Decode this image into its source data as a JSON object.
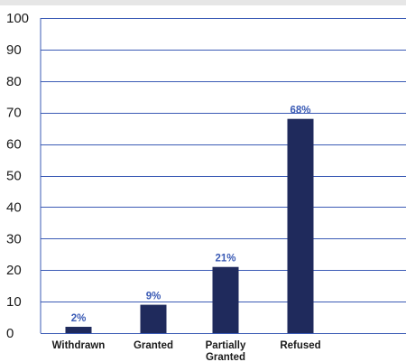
{
  "chart_data": {
    "type": "bar",
    "categories": [
      "Withdrawn",
      "Granted",
      "Partially\nGranted",
      "Refused"
    ],
    "values": [
      2,
      9,
      21,
      68
    ],
    "data_labels": [
      "2%",
      "9%",
      "21%",
      "68%"
    ],
    "ylim": [
      0,
      100
    ],
    "yticks": [
      0,
      10,
      20,
      30,
      40,
      50,
      60,
      70,
      80,
      90,
      100
    ],
    "grid": true,
    "legend": "none"
  },
  "colors": {
    "bar": "#1f2a5c",
    "grid": "#3b5bb5",
    "data_label": "#3b5bb5",
    "text": "#1a1a1a"
  }
}
